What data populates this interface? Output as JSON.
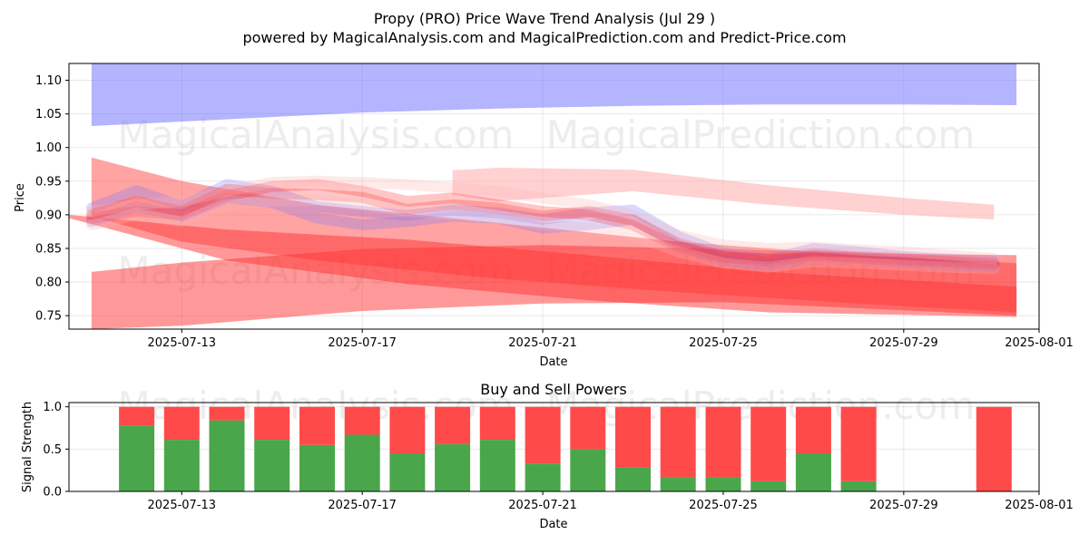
{
  "figure": {
    "title": "Propy (PRO) Price Wave Trend Analysis (Jul 29 )",
    "subtitle": "powered by MagicalAnalysis.com and MagicalPrediction.com and Predict-Price.com",
    "watermarks": [
      "MagicalAnalysis.com",
      "MagicalPrediction.com"
    ],
    "colors": {
      "blue": "#7777ff",
      "red": "#ff3333",
      "pink": "#ffb3b3",
      "buy": "#4aa64a",
      "sell": "#ff4a4a"
    }
  },
  "chart_data": [
    {
      "type": "area",
      "title": "",
      "xlabel": "Date",
      "ylabel": "Price",
      "xlim": [
        "2025-07-10T12:00",
        "2025-08-01"
      ],
      "ylim": [
        0.73,
        1.125
      ],
      "x_ticks": [
        "2025-07-13",
        "2025-07-17",
        "2025-07-21",
        "2025-07-25",
        "2025-07-29",
        "2025-08-01"
      ],
      "y_ticks": [
        0.75,
        0.8,
        0.85,
        0.9,
        0.95,
        1.0,
        1.05,
        1.1
      ],
      "grid": true,
      "bands": [
        {
          "color": "blue",
          "opacity": 0.55,
          "x": [
            "2025-07-11",
            "2025-07-14",
            "2025-07-17",
            "2025-07-20",
            "2025-07-23",
            "2025-07-26",
            "2025-07-29",
            "2025-07-31T12:00"
          ],
          "upper": [
            1.125,
            1.125,
            1.125,
            1.125,
            1.125,
            1.125,
            1.125,
            1.125
          ],
          "lower": [
            1.032,
            1.042,
            1.052,
            1.058,
            1.062,
            1.064,
            1.064,
            1.063
          ]
        },
        {
          "color": "red",
          "opacity": 0.5,
          "x": [
            "2025-07-11",
            "2025-07-13",
            "2025-07-17",
            "2025-07-21",
            "2025-07-25",
            "2025-07-29",
            "2025-07-31T12:00"
          ],
          "upper": [
            0.815,
            0.829,
            0.849,
            0.855,
            0.849,
            0.842,
            0.84
          ],
          "lower": [
            0.73,
            0.735,
            0.757,
            0.768,
            0.77,
            0.758,
            0.75
          ]
        },
        {
          "color": "red",
          "opacity": 0.5,
          "x": [
            "2025-07-10T12:00",
            "2025-07-14",
            "2025-07-18",
            "2025-07-22",
            "2025-07-26",
            "2025-07-31T12:00"
          ],
          "upper": [
            0.9,
            0.878,
            0.863,
            0.84,
            0.815,
            0.793
          ],
          "lower": [
            0.895,
            0.832,
            0.797,
            0.773,
            0.755,
            0.748
          ]
        },
        {
          "color": "red",
          "opacity": 0.45,
          "x": [
            "2025-07-11",
            "2025-07-13",
            "2025-07-16",
            "2025-07-20",
            "2025-07-24",
            "2025-07-28",
            "2025-07-31T12:00"
          ],
          "upper": [
            0.985,
            0.95,
            0.915,
            0.888,
            0.86,
            0.84,
            0.828
          ],
          "lower": [
            0.898,
            0.86,
            0.832,
            0.805,
            0.785,
            0.768,
            0.755
          ]
        },
        {
          "color": "pink",
          "opacity": 0.6,
          "x": [
            "2025-07-19",
            "2025-07-20",
            "2025-07-23",
            "2025-07-26",
            "2025-07-29",
            "2025-07-31"
          ],
          "upper": [
            0.966,
            0.97,
            0.967,
            0.944,
            0.925,
            0.915
          ],
          "lower": [
            0.93,
            0.92,
            0.935,
            0.915,
            0.9,
            0.893
          ]
        }
      ],
      "price_paths": {
        "x": [
          "2025-07-11",
          "2025-07-12",
          "2025-07-13",
          "2025-07-14",
          "2025-07-15",
          "2025-07-16",
          "2025-07-17",
          "2025-07-18",
          "2025-07-19",
          "2025-07-20",
          "2025-07-21",
          "2025-07-22",
          "2025-07-23",
          "2025-07-24",
          "2025-07-25",
          "2025-07-26",
          "2025-07-27",
          "2025-07-28",
          "2025-07-29",
          "2025-07-30",
          "2025-07-31"
        ],
        "series": [
          {
            "color": "blue",
            "values": [
              0.91,
              0.936,
              0.913,
              0.945,
              0.935,
              0.912,
              0.905,
              0.899,
              0.907,
              0.903,
              0.893,
              0.903,
              0.907,
              0.868,
              0.843,
              0.834,
              0.85,
              0.845,
              0.838,
              0.834,
              0.831
            ]
          },
          {
            "color": "blue",
            "values": [
              0.89,
              0.912,
              0.898,
              0.925,
              0.918,
              0.895,
              0.885,
              0.89,
              0.898,
              0.895,
              0.88,
              0.885,
              0.893,
              0.855,
              0.832,
              0.825,
              0.838,
              0.835,
              0.83,
              0.826,
              0.822
            ]
          },
          {
            "color": "red",
            "values": [
              0.9,
              0.92,
              0.905,
              0.938,
              0.932,
              0.93,
              0.926,
              0.908,
              0.915,
              0.91,
              0.898,
              0.905,
              0.892,
              0.858,
              0.838,
              0.83,
              0.84,
              0.836,
              0.832,
              0.83,
              0.825
            ]
          },
          {
            "color": "red",
            "values": [
              0.895,
              0.905,
              0.9,
              0.928,
              0.942,
              0.945,
              0.935,
              0.92,
              0.925,
              0.915,
              0.905,
              0.9,
              0.885,
              0.852,
              0.836,
              0.835,
              0.842,
              0.838,
              0.835,
              0.831,
              0.828
            ]
          },
          {
            "color": "pink",
            "values": [
              0.905,
              0.915,
              0.92,
              0.935,
              0.948,
              0.95,
              0.948,
              0.945,
              0.94,
              0.935,
              0.925,
              0.915,
              0.9,
              0.87,
              0.855,
              0.85,
              0.852,
              0.848,
              0.845,
              0.84,
              0.835
            ]
          },
          {
            "color": "pink",
            "values": [
              0.885,
              0.9,
              0.89,
              0.915,
              0.92,
              0.922,
              0.915,
              0.905,
              0.9,
              0.895,
              0.885,
              0.88,
              0.87,
              0.845,
              0.828,
              0.822,
              0.83,
              0.828,
              0.825,
              0.822,
              0.82
            ]
          }
        ]
      }
    },
    {
      "type": "bar",
      "title": "Buy and Sell Powers",
      "xlabel": "Date",
      "ylabel": "Signal Strength",
      "xlim": [
        "2025-07-10T12:00",
        "2025-08-01"
      ],
      "ylim": [
        0,
        1.05
      ],
      "x_ticks": [
        "2025-07-13",
        "2025-07-17",
        "2025-07-21",
        "2025-07-25",
        "2025-07-29",
        "2025-08-01"
      ],
      "y_ticks": [
        0.0,
        0.5,
        1.0
      ],
      "grid": true,
      "categories": [
        "2025-07-12",
        "2025-07-13",
        "2025-07-14",
        "2025-07-15",
        "2025-07-16",
        "2025-07-17",
        "2025-07-18",
        "2025-07-19",
        "2025-07-20",
        "2025-07-21",
        "2025-07-22",
        "2025-07-23",
        "2025-07-24",
        "2025-07-25",
        "2025-07-26",
        "2025-07-27",
        "2025-07-28",
        "2025-07-31"
      ],
      "series": [
        {
          "color": "buy",
          "values": [
            0.78,
            0.61,
            0.84,
            0.61,
            0.55,
            0.67,
            0.45,
            0.56,
            0.61,
            0.33,
            0.5,
            0.28,
            0.17,
            0.17,
            0.12,
            0.45,
            0.12,
            0.0
          ]
        },
        {
          "color": "sell",
          "values": [
            0.22,
            0.39,
            0.16,
            0.39,
            0.45,
            0.33,
            0.55,
            0.44,
            0.39,
            0.67,
            0.5,
            0.72,
            0.83,
            0.83,
            0.88,
            0.55,
            0.88,
            1.0
          ]
        }
      ]
    }
  ]
}
